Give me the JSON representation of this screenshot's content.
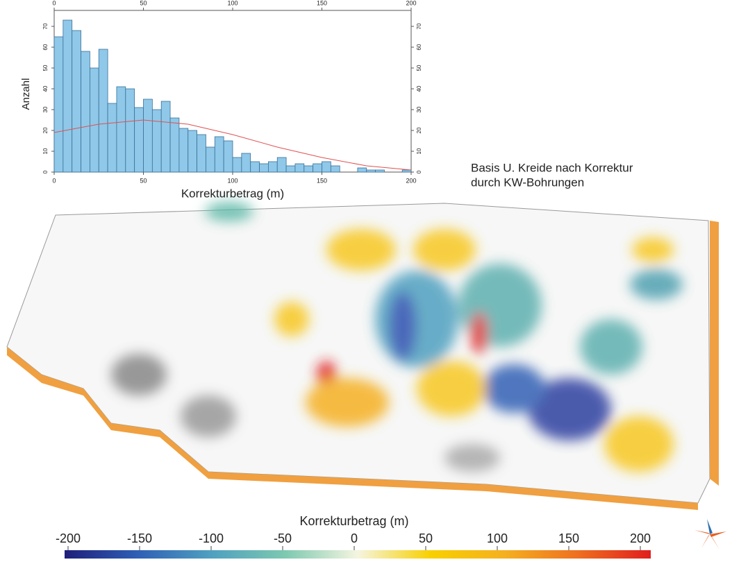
{
  "chart_data": [
    {
      "type": "histogram",
      "ylabel": "Anzahl",
      "xlabel": "Korrekturbetrag (m)",
      "bins": [
        0,
        5,
        10,
        15,
        20,
        25,
        30,
        35,
        40,
        45,
        50,
        55,
        60,
        65,
        70,
        75,
        80,
        85,
        90,
        95,
        100,
        105,
        110,
        115,
        120,
        125,
        130,
        135,
        140,
        145,
        150,
        155,
        160,
        165,
        170,
        175,
        180,
        185,
        190,
        195,
        200
      ],
      "values": [
        65,
        73,
        68,
        58,
        50,
        59,
        33,
        41,
        40,
        31,
        35,
        30,
        34,
        26,
        21,
        20,
        18,
        12,
        17,
        15,
        7,
        9,
        5,
        4,
        5,
        7,
        3,
        4,
        3,
        4,
        5,
        3,
        0,
        0,
        2,
        1,
        1,
        0,
        0,
        1
      ],
      "color": "#8fc8e8",
      "xlim": [
        0,
        200
      ],
      "xticks": [
        0,
        50,
        100,
        150,
        200
      ],
      "ylim": [
        0,
        75
      ],
      "yticks": [
        0,
        10,
        20,
        30,
        40,
        50,
        60,
        70
      ],
      "fit": {
        "color": "#e05050",
        "x": [
          0,
          25,
          50,
          75,
          100,
          125,
          150,
          175,
          200
        ],
        "values": [
          19,
          23,
          25,
          23,
          18,
          12,
          7,
          3,
          1
        ]
      },
      "annotation": [
        "Basis U. Kreide nach Korrektur",
        "durch KW-Bohrungen"
      ]
    },
    {
      "type": "colorbar",
      "title": "Korrekturbetrag (m)",
      "xlim": [
        -200,
        200
      ],
      "xticks": [
        -200,
        -150,
        -100,
        -50,
        0,
        50,
        100,
        150,
        200
      ],
      "colors": [
        "#1f1f7a",
        "#2f5fb5",
        "#4fa0c0",
        "#7cc8b0",
        "#f5f5e0",
        "#f8d000",
        "#f5b020",
        "#ee7020",
        "#e01e1e"
      ]
    }
  ]
}
